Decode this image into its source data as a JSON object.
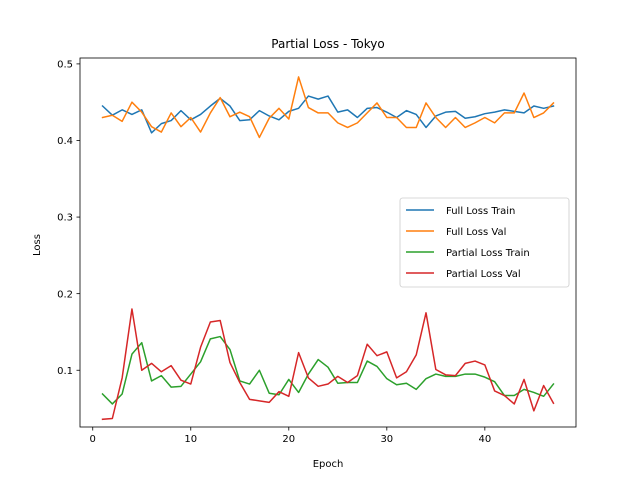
{
  "chart_data": {
    "type": "line",
    "title": "Partial Loss - Tokyo",
    "xlabel": "Epoch",
    "ylabel": "Loss",
    "xlim": [
      -1.3,
      49.3
    ],
    "ylim": [
      0.0259,
      0.5077
    ],
    "xticks": [
      0,
      10,
      20,
      30,
      40
    ],
    "yticks": [
      0.1,
      0.2,
      0.3,
      0.4,
      0.5
    ],
    "ytick_labels": [
      "0.1",
      "0.2",
      "0.3",
      "0.4",
      "0.5"
    ],
    "grid": false,
    "legend_position": "center-right",
    "x": [
      1,
      2,
      3,
      4,
      5,
      6,
      7,
      8,
      9,
      10,
      11,
      12,
      13,
      14,
      15,
      16,
      17,
      18,
      19,
      20,
      21,
      22,
      23,
      24,
      25,
      26,
      27,
      28,
      29,
      30,
      31,
      32,
      33,
      34,
      35,
      36,
      37,
      38,
      39,
      40,
      41,
      42,
      43,
      44,
      45,
      46,
      47
    ],
    "series": [
      {
        "name": "Full Loss Train",
        "color": "#1f77b4",
        "values": [
          0.445,
          0.433,
          0.44,
          0.434,
          0.44,
          0.41,
          0.422,
          0.426,
          0.439,
          0.427,
          0.434,
          0.445,
          0.455,
          0.445,
          0.426,
          0.427,
          0.439,
          0.432,
          0.427,
          0.438,
          0.442,
          0.458,
          0.454,
          0.458,
          0.437,
          0.44,
          0.43,
          0.442,
          0.443,
          0.437,
          0.43,
          0.439,
          0.434,
          0.417,
          0.432,
          0.437,
          0.438,
          0.429,
          0.431,
          0.435,
          0.437,
          0.44,
          0.438,
          0.436,
          0.445,
          0.442,
          0.445
        ]
      },
      {
        "name": "Full Loss Val",
        "color": "#ff7f0e",
        "values": [
          0.43,
          0.433,
          0.425,
          0.45,
          0.437,
          0.418,
          0.411,
          0.436,
          0.418,
          0.43,
          0.411,
          0.436,
          0.456,
          0.431,
          0.437,
          0.431,
          0.404,
          0.429,
          0.442,
          0.428,
          0.483,
          0.443,
          0.436,
          0.436,
          0.423,
          0.417,
          0.423,
          0.436,
          0.449,
          0.43,
          0.43,
          0.417,
          0.417,
          0.449,
          0.43,
          0.417,
          0.43,
          0.417,
          0.423,
          0.43,
          0.423,
          0.436,
          0.436,
          0.462,
          0.43,
          0.436,
          0.449
        ]
      },
      {
        "name": "Partial Loss Train",
        "color": "#2ca02c",
        "values": [
          0.069,
          0.056,
          0.069,
          0.121,
          0.136,
          0.086,
          0.093,
          0.078,
          0.079,
          0.095,
          0.111,
          0.141,
          0.144,
          0.127,
          0.086,
          0.082,
          0.1,
          0.07,
          0.068,
          0.088,
          0.071,
          0.095,
          0.114,
          0.104,
          0.083,
          0.084,
          0.084,
          0.112,
          0.105,
          0.089,
          0.081,
          0.083,
          0.075,
          0.089,
          0.095,
          0.092,
          0.092,
          0.095,
          0.095,
          0.091,
          0.085,
          0.067,
          0.067,
          0.075,
          0.071,
          0.066,
          0.082
        ]
      },
      {
        "name": "Partial Loss Val",
        "color": "#d62728",
        "values": [
          0.036,
          0.037,
          0.09,
          0.18,
          0.1,
          0.109,
          0.098,
          0.106,
          0.087,
          0.082,
          0.13,
          0.163,
          0.165,
          0.11,
          0.084,
          0.062,
          0.06,
          0.058,
          0.072,
          0.066,
          0.123,
          0.09,
          0.079,
          0.082,
          0.092,
          0.084,
          0.093,
          0.134,
          0.119,
          0.124,
          0.09,
          0.098,
          0.12,
          0.175,
          0.101,
          0.094,
          0.093,
          0.109,
          0.112,
          0.107,
          0.073,
          0.067,
          0.056,
          0.088,
          0.047,
          0.08,
          0.057
        ]
      }
    ]
  }
}
